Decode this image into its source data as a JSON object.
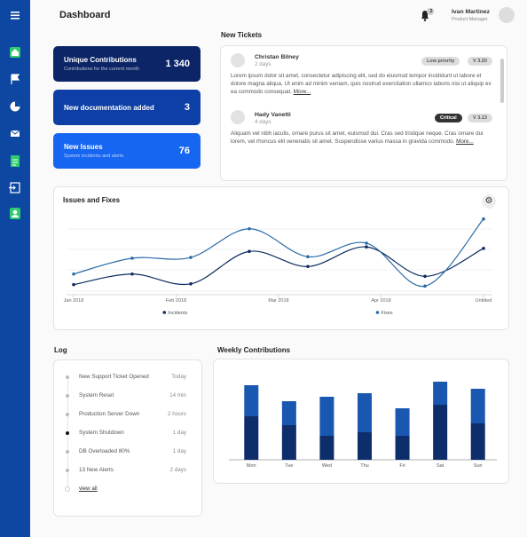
{
  "header": {
    "title": "Dashboard",
    "notification_count": "2",
    "user_name": "Ivan Martinez",
    "user_role": "Product Manager"
  },
  "cards": [
    {
      "title": "Unique Contributions",
      "subtitle": "Contributions for the current month",
      "value": "1 340"
    },
    {
      "title": "New documentation added",
      "value": "3"
    },
    {
      "title": "New Issues",
      "subtitle": "System incidents and alerts",
      "value": "76"
    }
  ],
  "tickets": {
    "title": "New Tickets",
    "items": [
      {
        "name": "Christan Bilney",
        "time": "2 days",
        "priority": "Low priority",
        "version": "V 3.20",
        "text": "Lorem ipsum dolor sit amet, consectetur adipiscing elit, sed do eiusmod tempor incididunt ut labore et dolore magna aliqua. Ut enim ad minim veniam, quis nostrud exercitation ullamco laboris nisi ut aliquip ex ea commodo consequat.",
        "more": "More..."
      },
      {
        "name": "Hady Vanetti",
        "time": "4 days",
        "priority": "Critical",
        "version": "V 3.13",
        "text": "Aliquam vel nibh iaculis, ornare purus sit amet, euismod dui. Cras sed tristique neque. Cras ornare dui lorem, vel rhoncus elit venenatis sit amet. Suspendisse varius massa in gravida commodo.",
        "more": "More..."
      }
    ]
  },
  "log": {
    "title": "Log",
    "items": [
      {
        "text": "New Support Ticket Opened",
        "time": "Today"
      },
      {
        "text": "System Reset",
        "time": "14 min"
      },
      {
        "text": "Production Server Down",
        "time": "2 hours"
      },
      {
        "text": "System Shutdown",
        "time": "1 day"
      },
      {
        "text": "DB Overloaded 80%",
        "time": "1 day"
      },
      {
        "text": "13 New Alerts",
        "time": "2 days"
      }
    ],
    "view_all": "view all"
  },
  "chart_data": [
    {
      "type": "line",
      "title": "Issues and Fixes",
      "x": [
        0,
        1,
        2,
        3,
        4,
        5,
        6,
        7
      ],
      "xlim": [
        0,
        7
      ],
      "xticks": [
        {
          "value": 0,
          "label": "Jan 2018"
        },
        {
          "value": 1.75,
          "label": "Feb 2018"
        },
        {
          "value": 3.5,
          "label": "Mar 2018"
        },
        {
          "value": 5.25,
          "label": "Apr 2018"
        },
        {
          "value": 7,
          "label": "Untitled"
        }
      ],
      "ylim": [
        0,
        100
      ],
      "legend": "bottom",
      "series": [
        {
          "name": "Incidents",
          "color": "#0b2a5e",
          "values": [
            11,
            25,
            12,
            55,
            35,
            61,
            22,
            59
          ]
        },
        {
          "name": "Fixes",
          "color": "#2a6aa6",
          "values": [
            25,
            46,
            47,
            85,
            48,
            66,
            9,
            98
          ]
        }
      ]
    },
    {
      "type": "bar",
      "title": "Weekly Contributions",
      "stacked": true,
      "categories": [
        "Mon",
        "Tue",
        "Wed",
        "Thu",
        "Fri",
        "Sat",
        "Sun"
      ],
      "ylim": [
        0,
        100
      ],
      "series": [
        {
          "color": "#0d2d6b",
          "values": [
            49,
            39,
            27,
            31,
            27,
            62,
            41
          ]
        },
        {
          "color": "#1a57b0",
          "values": [
            35,
            27,
            44,
            44,
            31,
            26,
            39
          ]
        }
      ]
    }
  ]
}
